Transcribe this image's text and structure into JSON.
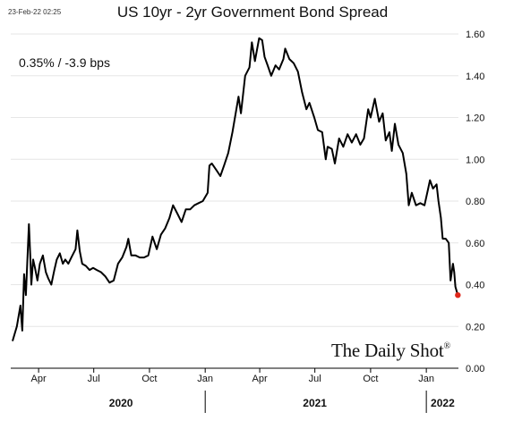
{
  "header": {
    "timestamp": "23-Feb-22 02:25",
    "title": "US 10yr - 2yr Government Bond Spread",
    "readout": "0.35%  /  -3.9 bps"
  },
  "brand": {
    "name": "The Daily Shot",
    "mark": "®"
  },
  "colors": {
    "line": "#000000",
    "last_point": "#e0271b",
    "grid": "#e6e6e6"
  },
  "chart_data": {
    "type": "line",
    "title": "US 10yr - 2yr Government Bond Spread",
    "xlabel": "",
    "ylabel": "",
    "ylim": [
      0,
      1.6
    ],
    "y_ticks": [
      "0.00",
      "0.20",
      "0.40",
      "0.60",
      "0.80",
      "1.00",
      "1.20",
      "1.40",
      "1.60"
    ],
    "y_tick_values": [
      0,
      0.2,
      0.4,
      0.6,
      0.8,
      1.0,
      1.2,
      1.4,
      1.6
    ],
    "xlim": [
      "2020-02-15",
      "2022-02-23"
    ],
    "x_ticks": [
      {
        "label": "Apr",
        "date": "2020-04-01"
      },
      {
        "label": "Jul",
        "date": "2020-07-01"
      },
      {
        "label": "Oct",
        "date": "2020-10-01"
      },
      {
        "label": "Jan",
        "date": "2021-01-01"
      },
      {
        "label": "Apr",
        "date": "2021-04-01"
      },
      {
        "label": "Jul",
        "date": "2021-07-01"
      },
      {
        "label": "Oct",
        "date": "2021-10-01"
      },
      {
        "label": "Jan",
        "date": "2022-01-01"
      }
    ],
    "year_labels": [
      {
        "label": "2020",
        "date": "2020-08-15"
      },
      {
        "label": "2021",
        "date": "2021-07-01"
      },
      {
        "label": "2022",
        "date": "2022-01-28"
      }
    ],
    "grid": true,
    "legend": "none",
    "series": [
      {
        "points": [
          [
            "2020-02-18",
            0.13
          ],
          [
            "2020-02-25",
            0.2
          ],
          [
            "2020-03-02",
            0.3
          ],
          [
            "2020-03-05",
            0.18
          ],
          [
            "2020-03-08",
            0.45
          ],
          [
            "2020-03-11",
            0.35
          ],
          [
            "2020-03-14",
            0.55
          ],
          [
            "2020-03-16",
            0.69
          ],
          [
            "2020-03-18",
            0.55
          ],
          [
            "2020-03-20",
            0.4
          ],
          [
            "2020-03-23",
            0.52
          ],
          [
            "2020-03-26",
            0.48
          ],
          [
            "2020-03-30",
            0.42
          ],
          [
            "2020-04-03",
            0.5
          ],
          [
            "2020-04-08",
            0.54
          ],
          [
            "2020-04-13",
            0.46
          ],
          [
            "2020-04-17",
            0.43
          ],
          [
            "2020-04-22",
            0.4
          ],
          [
            "2020-04-27",
            0.47
          ],
          [
            "2020-05-01",
            0.52
          ],
          [
            "2020-05-06",
            0.55
          ],
          [
            "2020-05-11",
            0.5
          ],
          [
            "2020-05-15",
            0.52
          ],
          [
            "2020-05-20",
            0.5
          ],
          [
            "2020-05-25",
            0.53
          ],
          [
            "2020-06-01",
            0.57
          ],
          [
            "2020-06-04",
            0.66
          ],
          [
            "2020-06-08",
            0.56
          ],
          [
            "2020-06-12",
            0.5
          ],
          [
            "2020-06-18",
            0.49
          ],
          [
            "2020-06-24",
            0.47
          ],
          [
            "2020-06-30",
            0.48
          ],
          [
            "2020-07-06",
            0.47
          ],
          [
            "2020-07-13",
            0.46
          ],
          [
            "2020-07-20",
            0.44
          ],
          [
            "2020-07-27",
            0.41
          ],
          [
            "2020-08-03",
            0.42
          ],
          [
            "2020-08-10",
            0.5
          ],
          [
            "2020-08-17",
            0.53
          ],
          [
            "2020-08-24",
            0.58
          ],
          [
            "2020-08-27",
            0.62
          ],
          [
            "2020-09-01",
            0.54
          ],
          [
            "2020-09-08",
            0.54
          ],
          [
            "2020-09-15",
            0.53
          ],
          [
            "2020-09-22",
            0.53
          ],
          [
            "2020-09-29",
            0.54
          ],
          [
            "2020-10-06",
            0.63
          ],
          [
            "2020-10-13",
            0.57
          ],
          [
            "2020-10-20",
            0.64
          ],
          [
            "2020-10-27",
            0.67
          ],
          [
            "2020-11-03",
            0.72
          ],
          [
            "2020-11-09",
            0.78
          ],
          [
            "2020-11-16",
            0.74
          ],
          [
            "2020-11-23",
            0.7
          ],
          [
            "2020-11-30",
            0.76
          ],
          [
            "2020-12-07",
            0.76
          ],
          [
            "2020-12-14",
            0.78
          ],
          [
            "2020-12-21",
            0.79
          ],
          [
            "2020-12-28",
            0.8
          ],
          [
            "2021-01-05",
            0.84
          ],
          [
            "2021-01-08",
            0.97
          ],
          [
            "2021-01-12",
            0.98
          ],
          [
            "2021-01-19",
            0.95
          ],
          [
            "2021-01-26",
            0.92
          ],
          [
            "2021-02-01",
            0.97
          ],
          [
            "2021-02-08",
            1.03
          ],
          [
            "2021-02-15",
            1.13
          ],
          [
            "2021-02-22",
            1.25
          ],
          [
            "2021-02-25",
            1.3
          ],
          [
            "2021-03-01",
            1.22
          ],
          [
            "2021-03-08",
            1.4
          ],
          [
            "2021-03-15",
            1.44
          ],
          [
            "2021-03-19",
            1.56
          ],
          [
            "2021-03-24",
            1.47
          ],
          [
            "2021-03-31",
            1.58
          ],
          [
            "2021-04-05",
            1.57
          ],
          [
            "2021-04-09",
            1.49
          ],
          [
            "2021-04-14",
            1.45
          ],
          [
            "2021-04-20",
            1.4
          ],
          [
            "2021-04-27",
            1.45
          ],
          [
            "2021-05-03",
            1.43
          ],
          [
            "2021-05-10",
            1.48
          ],
          [
            "2021-05-13",
            1.53
          ],
          [
            "2021-05-20",
            1.48
          ],
          [
            "2021-05-27",
            1.46
          ],
          [
            "2021-06-03",
            1.42
          ],
          [
            "2021-06-10",
            1.32
          ],
          [
            "2021-06-17",
            1.24
          ],
          [
            "2021-06-22",
            1.27
          ],
          [
            "2021-06-30",
            1.2
          ],
          [
            "2021-07-06",
            1.14
          ],
          [
            "2021-07-13",
            1.13
          ],
          [
            "2021-07-19",
            1.0
          ],
          [
            "2021-07-22",
            1.06
          ],
          [
            "2021-07-29",
            1.05
          ],
          [
            "2021-08-03",
            0.98
          ],
          [
            "2021-08-10",
            1.1
          ],
          [
            "2021-08-17",
            1.06
          ],
          [
            "2021-08-24",
            1.12
          ],
          [
            "2021-08-31",
            1.08
          ],
          [
            "2021-09-07",
            1.12
          ],
          [
            "2021-09-14",
            1.07
          ],
          [
            "2021-09-20",
            1.1
          ],
          [
            "2021-09-27",
            1.24
          ],
          [
            "2021-10-01",
            1.2
          ],
          [
            "2021-10-08",
            1.29
          ],
          [
            "2021-10-15",
            1.18
          ],
          [
            "2021-10-21",
            1.22
          ],
          [
            "2021-10-26",
            1.09
          ],
          [
            "2021-11-01",
            1.13
          ],
          [
            "2021-11-05",
            1.04
          ],
          [
            "2021-11-10",
            1.17
          ],
          [
            "2021-11-16",
            1.07
          ],
          [
            "2021-11-23",
            1.03
          ],
          [
            "2021-11-29",
            0.93
          ],
          [
            "2021-12-03",
            0.78
          ],
          [
            "2021-12-08",
            0.84
          ],
          [
            "2021-12-15",
            0.78
          ],
          [
            "2021-12-22",
            0.79
          ],
          [
            "2021-12-29",
            0.78
          ],
          [
            "2022-01-04",
            0.86
          ],
          [
            "2022-01-07",
            0.9
          ],
          [
            "2022-01-12",
            0.86
          ],
          [
            "2022-01-18",
            0.88
          ],
          [
            "2022-01-21",
            0.8
          ],
          [
            "2022-01-25",
            0.72
          ],
          [
            "2022-01-28",
            0.62
          ],
          [
            "2022-02-02",
            0.62
          ],
          [
            "2022-02-07",
            0.6
          ],
          [
            "2022-02-10",
            0.42
          ],
          [
            "2022-02-14",
            0.5
          ],
          [
            "2022-02-16",
            0.46
          ],
          [
            "2022-02-18",
            0.39
          ],
          [
            "2022-02-22",
            0.35
          ]
        ]
      }
    ],
    "last_value": 0.35
  }
}
